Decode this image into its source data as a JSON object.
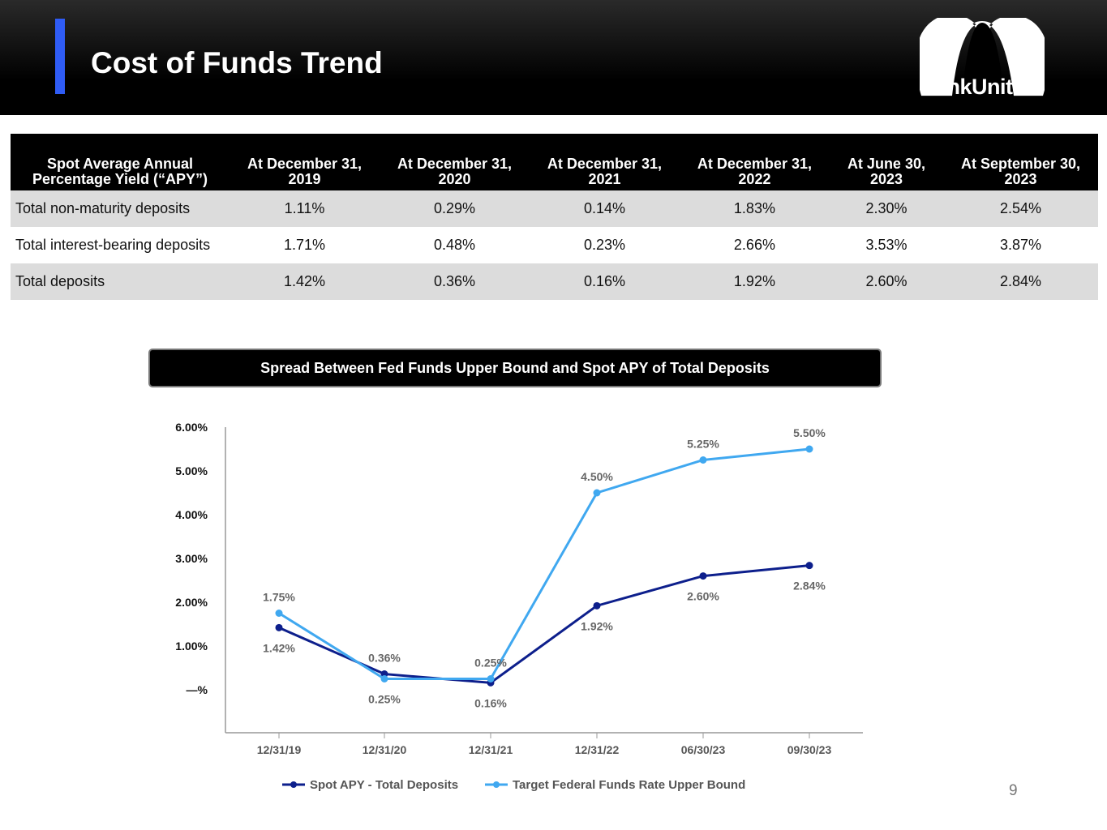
{
  "header": {
    "title": "Cost of Funds Trend",
    "logo_text": "BankUnited"
  },
  "table": {
    "headers": [
      "Spot Average Annual Percentage Yield (“APY”)",
      "At December 31, 2019",
      "At December 31, 2020",
      "At December 31, 2021",
      "At December 31, 2022",
      "At June 30, 2023",
      "At September 30, 2023"
    ],
    "rows": [
      [
        "Total non-maturity deposits",
        "1.11%",
        "0.29%",
        "0.14%",
        "1.83%",
        "2.30%",
        "2.54%"
      ],
      [
        "Total interest-bearing deposits",
        "1.71%",
        "0.48%",
        "0.23%",
        "2.66%",
        "3.53%",
        "3.87%"
      ],
      [
        "Total deposits",
        "1.42%",
        "0.36%",
        "0.16%",
        "1.92%",
        "2.60%",
        "2.84%"
      ]
    ]
  },
  "chart_data": {
    "type": "line",
    "title": "Spread Between Fed Funds Upper Bound and Spot APY of Total Deposits",
    "categories": [
      "12/31/19",
      "12/31/20",
      "12/31/21",
      "12/31/22",
      "06/30/23",
      "09/30/23"
    ],
    "yticks": [
      "—%",
      "1.00%",
      "2.00%",
      "3.00%",
      "4.00%",
      "5.00%",
      "6.00%"
    ],
    "ylim": [
      -1,
      6
    ],
    "series": [
      {
        "name": "Spot APY - Total Deposits",
        "color": "#0d1f8c",
        "values": [
          1.42,
          0.36,
          0.16,
          1.92,
          2.6,
          2.84
        ],
        "labels": [
          "1.42%",
          "0.36%",
          "0.16%",
          "1.92%",
          "2.60%",
          "2.84%"
        ]
      },
      {
        "name": "Target Federal Funds Rate Upper Bound",
        "color": "#40a8f0",
        "values": [
          1.75,
          0.25,
          0.25,
          4.5,
          5.25,
          5.5
        ],
        "labels": [
          "1.75%",
          "0.25%",
          "0.25%",
          "4.50%",
          "5.25%",
          "5.50%"
        ]
      }
    ],
    "legend": "bottom"
  },
  "page_number": "9"
}
